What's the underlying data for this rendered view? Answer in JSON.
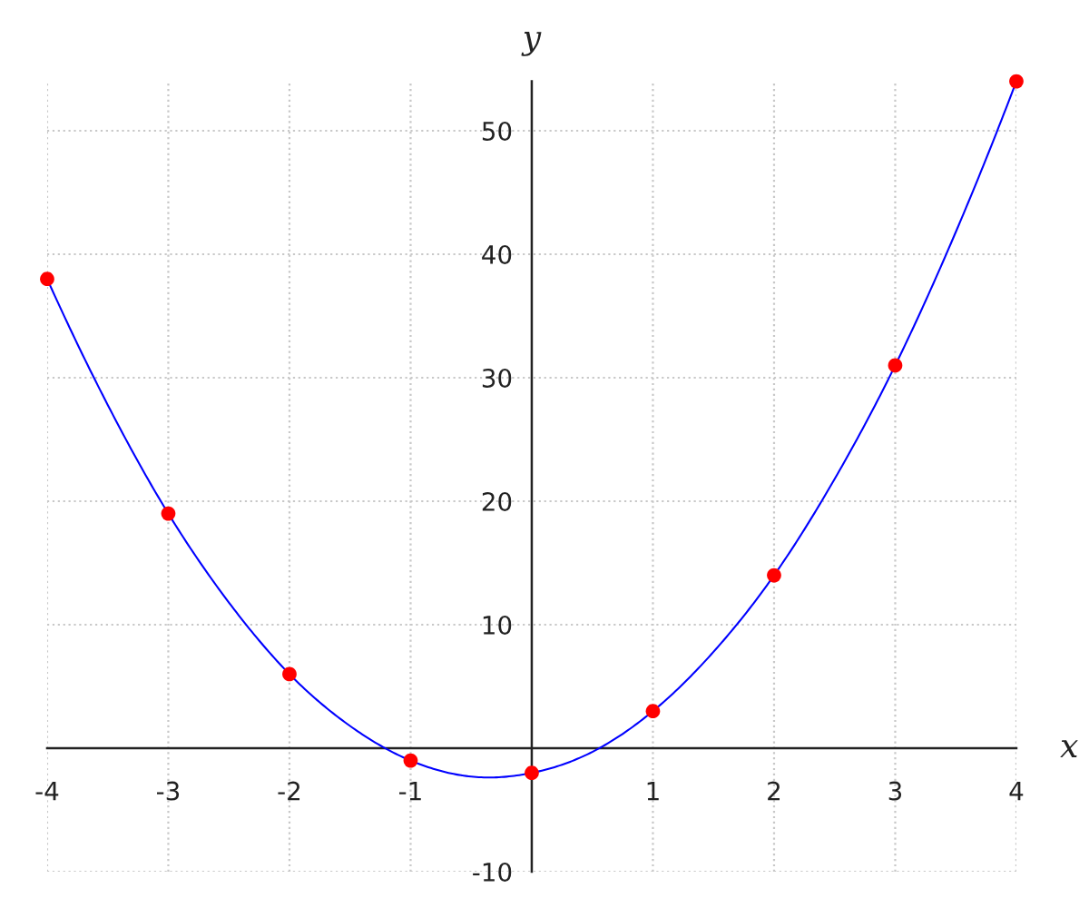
{
  "chart_data": {
    "type": "line",
    "xlabel": "x",
    "ylabel": "y",
    "xlim": [
      -4,
      4
    ],
    "ylim": [
      -10,
      54
    ],
    "xticks": [
      -4,
      -3,
      -2,
      -1,
      1,
      2,
      3,
      4
    ],
    "yticks": [
      -10,
      10,
      20,
      30,
      40,
      50
    ],
    "grid": true,
    "series": [
      {
        "color": "#0000ff",
        "line_style": "solid",
        "x": [
          -4,
          -3.5,
          -3,
          -2.5,
          -2,
          -1.5,
          -1,
          -0.5,
          0,
          0.5,
          1,
          1.5,
          2,
          2.5,
          3,
          3.5,
          4
        ],
        "values": [
          38,
          27.8,
          19,
          11.8,
          6,
          1.8,
          -1,
          -2.3,
          -2,
          -0.3,
          3,
          7.8,
          14,
          21.8,
          31,
          41.8,
          54
        ]
      },
      {
        "type": "scatter",
        "color": "#ff0000",
        "marker": "circle",
        "x": [
          -4,
          -3,
          -2,
          -1,
          0,
          1,
          2,
          3,
          4
        ],
        "values": [
          38,
          19,
          6,
          -1,
          -2,
          3,
          14,
          31,
          54
        ]
      }
    ]
  }
}
